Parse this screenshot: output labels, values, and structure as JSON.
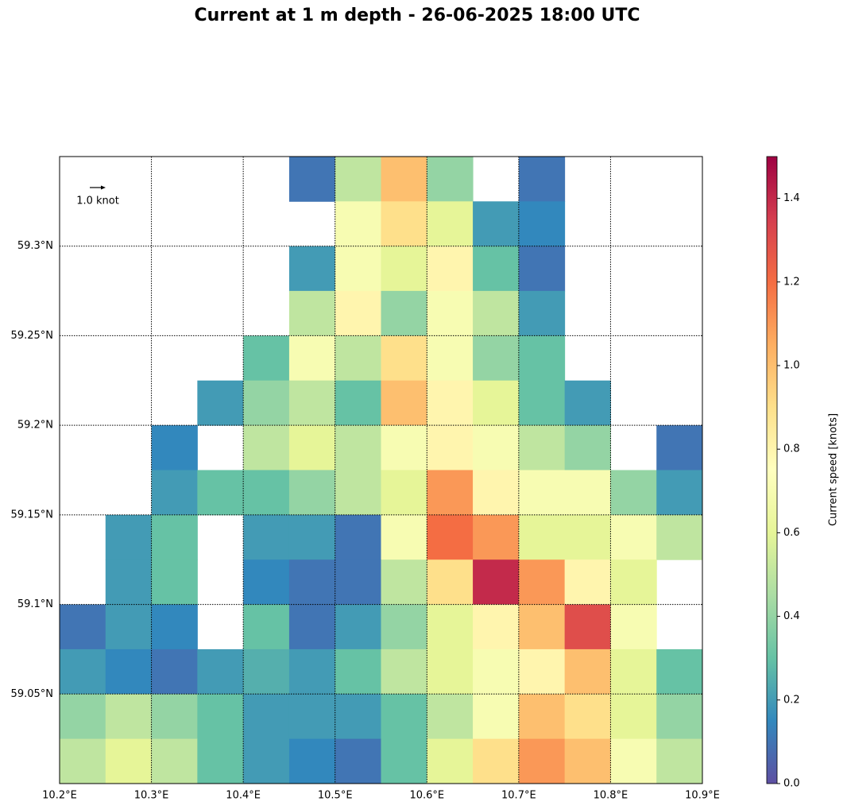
{
  "chart_data": {
    "type": "map-field",
    "title": "Current at 1 m depth - 26-06-2025 18:00 UTC",
    "xlim": [
      10.2,
      10.9
    ],
    "ylim": [
      59.0,
      59.35
    ],
    "xticks": [
      {
        "value": 10.2,
        "label": "10.2°E"
      },
      {
        "value": 10.3,
        "label": "10.3°E"
      },
      {
        "value": 10.4,
        "label": "10.4°E"
      },
      {
        "value": 10.5,
        "label": "10.5°E"
      },
      {
        "value": 10.6,
        "label": "10.6°E"
      },
      {
        "value": 10.7,
        "label": "10.7°E"
      },
      {
        "value": 10.8,
        "label": "10.8°E"
      },
      {
        "value": 10.9,
        "label": "10.9°E"
      }
    ],
    "yticks": [
      {
        "value": 59.05,
        "label": "59.05°N"
      },
      {
        "value": 59.1,
        "label": "59.1°N"
      },
      {
        "value": 59.15,
        "label": "59.15°N"
      },
      {
        "value": 59.2,
        "label": "59.2°N"
      },
      {
        "value": 59.25,
        "label": "59.25°N"
      },
      {
        "value": 59.3,
        "label": "59.3°N"
      }
    ],
    "grid": true,
    "quiver_key": "1.0 knot",
    "colorbar": {
      "label": "Current speed [knots]",
      "clim": [
        0,
        1.5
      ],
      "ticks": [
        {
          "value": 0,
          "label": "0.0"
        },
        {
          "value": 0.2,
          "label": "0.2"
        },
        {
          "value": 0.4,
          "label": "0.4"
        },
        {
          "value": 0.6,
          "label": "0.6"
        },
        {
          "value": 0.8,
          "label": "0.8"
        },
        {
          "value": 1.0,
          "label": "1.0"
        },
        {
          "value": 1.2,
          "label": "1.2"
        },
        {
          "value": 1.4,
          "label": "1.4"
        }
      ],
      "colormap": [
        "#5e4fa2",
        "#3288bd",
        "#66c2a5",
        "#abdda4",
        "#e6f598",
        "#ffffbf",
        "#fee08b",
        "#fdae61",
        "#f46d43",
        "#d53e4f",
        "#9e0142"
      ]
    },
    "field": {
      "lon": [
        10.225,
        10.275,
        10.325,
        10.375,
        10.425,
        10.475,
        10.525,
        10.575,
        10.625,
        10.675,
        10.725,
        10.775,
        10.825,
        10.875
      ],
      "lat": [
        59.3375,
        59.3125,
        59.2875,
        59.2625,
        59.2375,
        59.2125,
        59.1875,
        59.1625,
        59.1375,
        59.1125,
        59.0875,
        59.0625,
        59.0375,
        59.0125
      ],
      "speed": [
        [
          null,
          null,
          null,
          null,
          null,
          0.1,
          0.5,
          1.0,
          0.4,
          null,
          0.1,
          null,
          null,
          null
        ],
        [
          null,
          null,
          null,
          null,
          null,
          null,
          0.7,
          0.9,
          0.6,
          0.2,
          0.15,
          null,
          null,
          null
        ],
        [
          null,
          null,
          null,
          null,
          null,
          0.2,
          0.7,
          0.6,
          0.8,
          0.3,
          0.1,
          null,
          null,
          null
        ],
        [
          null,
          null,
          null,
          null,
          null,
          0.5,
          0.8,
          0.4,
          0.7,
          0.5,
          0.2,
          null,
          null,
          null
        ],
        [
          null,
          null,
          null,
          null,
          0.3,
          0.7,
          0.5,
          0.9,
          0.7,
          0.4,
          0.3,
          null,
          null,
          null
        ],
        [
          null,
          null,
          null,
          0.2,
          0.4,
          0.5,
          0.3,
          1.0,
          0.8,
          0.6,
          0.3,
          0.2,
          null,
          null
        ],
        [
          null,
          null,
          0.15,
          null,
          0.5,
          0.6,
          0.5,
          0.7,
          0.8,
          0.7,
          0.5,
          0.4,
          null,
          0.1
        ],
        [
          null,
          null,
          0.2,
          0.3,
          0.3,
          0.4,
          0.5,
          0.6,
          1.1,
          0.8,
          0.7,
          0.7,
          0.4,
          0.2
        ],
        [
          null,
          0.2,
          0.3,
          null,
          0.2,
          0.2,
          0.1,
          0.7,
          1.2,
          1.1,
          0.6,
          0.6,
          0.7,
          0.5
        ],
        [
          null,
          0.2,
          0.3,
          null,
          0.15,
          0.1,
          0.1,
          0.5,
          0.9,
          1.4,
          1.1,
          0.8,
          0.6,
          null
        ],
        [
          0.1,
          0.2,
          0.15,
          null,
          0.3,
          0.1,
          0.2,
          0.4,
          0.6,
          0.8,
          1.0,
          1.3,
          0.7,
          null
        ],
        [
          0.2,
          0.15,
          0.1,
          0.2,
          0.25,
          0.2,
          0.3,
          0.5,
          0.6,
          0.7,
          0.8,
          1.0,
          0.6,
          0.3
        ],
        [
          0.4,
          0.5,
          0.4,
          0.3,
          0.2,
          0.2,
          0.2,
          0.3,
          0.5,
          0.7,
          1.0,
          0.9,
          0.6,
          0.4
        ],
        [
          0.5,
          0.6,
          0.5,
          0.3,
          0.2,
          0.15,
          0.1,
          0.3,
          0.6,
          0.9,
          1.1,
          1.0,
          0.7,
          0.5
        ]
      ]
    }
  }
}
